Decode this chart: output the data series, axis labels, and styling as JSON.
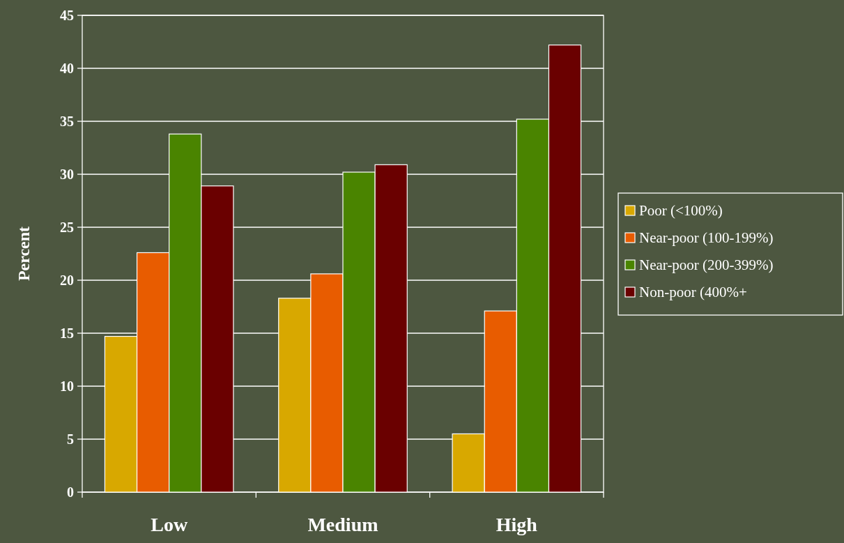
{
  "chart_data": {
    "type": "bar",
    "ylabel": "Percent",
    "categories": [
      "Low",
      "Medium",
      "High"
    ],
    "series": [
      {
        "name": "Poor (<100%)",
        "color": "#d8a800",
        "values": [
          14.7,
          18.3,
          5.5
        ]
      },
      {
        "name": "Near-poor (100-199%)",
        "color": "#e85c00",
        "values": [
          22.6,
          20.6,
          17.1
        ]
      },
      {
        "name": "Near-poor (200-399%)",
        "color": "#4a8400",
        "values": [
          33.8,
          30.2,
          35.2
        ]
      },
      {
        "name": "Non-poor (400%+",
        "color": "#6a0000",
        "values": [
          28.9,
          30.9,
          42.2
        ]
      }
    ],
    "ylim": [
      0,
      45
    ],
    "yticks": [
      0,
      5,
      10,
      15,
      20,
      25,
      30,
      35,
      40,
      45
    ],
    "grid": "y",
    "legend": "right"
  }
}
